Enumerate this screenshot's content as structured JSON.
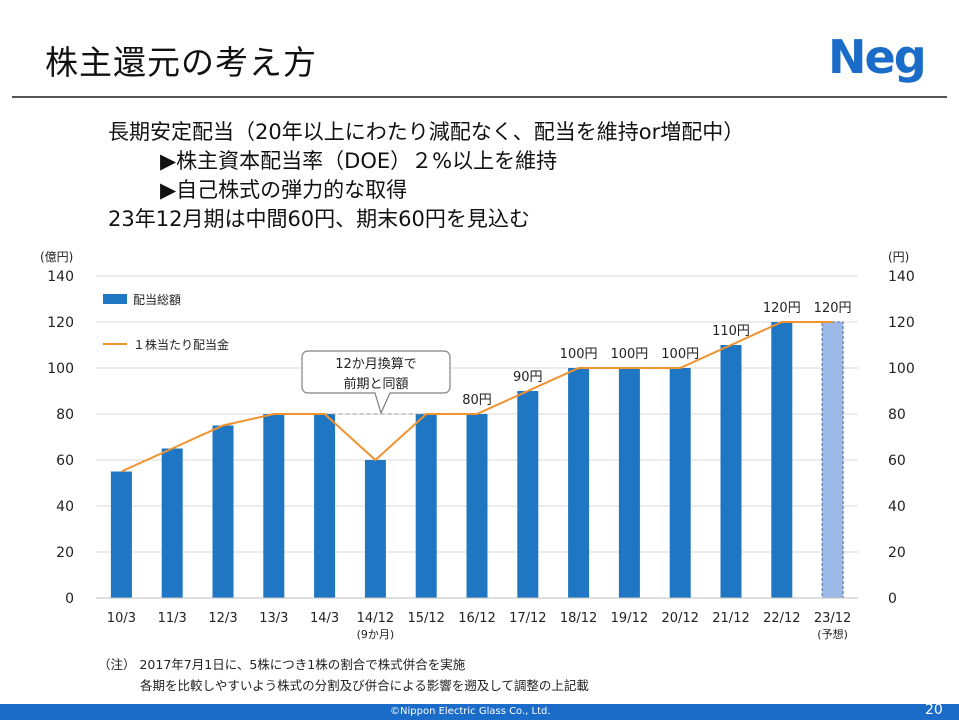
{
  "slide": {
    "title": "株主還元の考え方",
    "logo": "Neg",
    "bullets": [
      "長期安定配当（20年以上にわたり減配なく、配当を維持or増配中）",
      "▶株主資本配当率（DOE）２%以上を維持",
      "▶自己株式の弾力的な取得",
      "23年12月期は中間60円、期末60円を見込む"
    ],
    "notes": [
      "（注） 2017年7月1日に、5株につき1株の割合で株式併合を実施",
      "各期を比較しやすいよう株式の分割及び併合による影響を遡及して調整の上記載"
    ],
    "copyright": "©Nippon Electric Glass Co., Ltd.",
    "page_number": "20"
  },
  "colors": {
    "bar": "#1f77c4",
    "line": "#f0922e",
    "forecast": "#9cb9e8",
    "brand": "#1a6cc8"
  },
  "chart_data": {
    "type": "bar",
    "categories": [
      "10/3",
      "11/3",
      "12/3",
      "13/3",
      "14/3",
      "14/12",
      "15/12",
      "16/12",
      "17/12",
      "18/12",
      "19/12",
      "20/12",
      "21/12",
      "22/12",
      "23/12"
    ],
    "category_sublabels": [
      "",
      "",
      "",
      "",
      "",
      "(9か月)",
      "",
      "",
      "",
      "",
      "",
      "",
      "",
      "",
      "(予想)"
    ],
    "forecast_index": 14,
    "y_left_label": "(億円)",
    "y_right_label": "(円)",
    "ylim": [
      0,
      140
    ],
    "yticks": [
      0,
      20,
      40,
      60,
      80,
      100,
      120,
      140
    ],
    "series": [
      {
        "name": "配当総額",
        "type": "bar",
        "values": [
          55,
          65,
          75,
          80,
          80,
          60,
          80,
          80,
          90,
          100,
          100,
          100,
          110,
          120,
          120
        ]
      },
      {
        "name": "１株当たり配当金",
        "type": "line",
        "values": [
          55,
          65,
          75,
          80,
          80,
          60,
          80,
          80,
          90,
          100,
          100,
          100,
          110,
          120,
          120
        ]
      }
    ],
    "data_labels": [
      "",
      "",
      "",
      "",
      "",
      "",
      "",
      "80円",
      "90円",
      "100円",
      "100円",
      "100円",
      "110円",
      "120円",
      "120円"
    ],
    "callout": {
      "text_lines": [
        "12か月換算で",
        "前期と同額"
      ]
    },
    "legend_position": "top-left"
  }
}
